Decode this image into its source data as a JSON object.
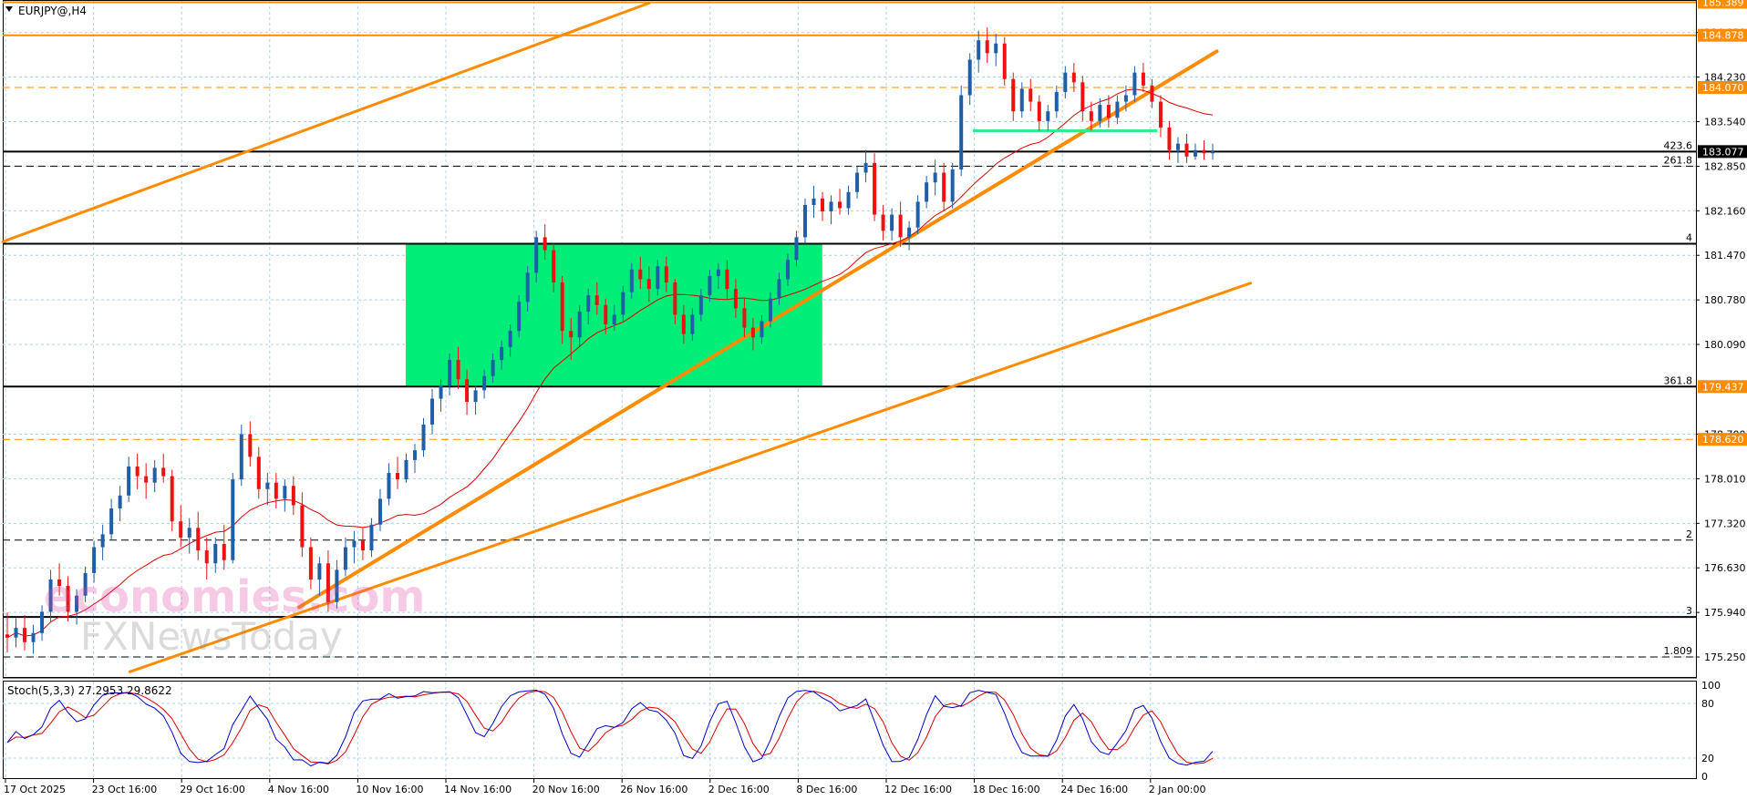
{
  "window": {
    "symbol_label": "EURJPY@,H4",
    "menu_icon": "triangle-down-icon"
  },
  "watermark": {
    "line1": "economies.com",
    "line2": "FXNewsToday"
  },
  "chart_data": {
    "type": "candlestick",
    "symbol": "EURJPY@",
    "timeframe": "H4",
    "price_axis": {
      "range": [
        174.94,
        185.41
      ],
      "ticks": [
        175.25,
        175.94,
        176.63,
        177.32,
        178.01,
        178.7,
        180.09,
        180.78,
        181.47,
        182.16,
        182.85,
        183.54,
        184.23,
        184.92
      ]
    },
    "time_axis": {
      "labels": [
        "17 Oct 2025",
        "23 Oct 16:00",
        "29 Oct 16:00",
        "4 Nov 16:00",
        "10 Nov 16:00",
        "14 Nov 16:00",
        "20 Nov 16:00",
        "26 Nov 16:00",
        "2 Dec 16:00",
        "8 Dec 16:00",
        "12 Dec 16:00",
        "18 Dec 16:00",
        "24 Dec 16:00",
        "2 Jan 00:00"
      ]
    },
    "price_tags": [
      {
        "value": "185.389",
        "bg": "#ff8c00"
      },
      {
        "value": "184.878",
        "bg": "#ff8c00"
      },
      {
        "value": "184.070",
        "bg": "#ff8c00"
      },
      {
        "value": "183.077",
        "bg": "#000000"
      },
      {
        "value": "179.437",
        "bg": "#ff8c00"
      },
      {
        "value": "178.620",
        "bg": "#ff8c00"
      }
    ],
    "horizontal_levels": [
      {
        "price": 185.389,
        "style": "solid",
        "color": "#ff8c00",
        "label": ""
      },
      {
        "price": 184.878,
        "style": "solid",
        "color": "#ff8c00",
        "label": ""
      },
      {
        "price": 184.07,
        "style": "dashed",
        "color": "#ff8c00",
        "label": ""
      },
      {
        "price": 183.077,
        "style": "solid",
        "color": "#000000",
        "label": "423.6"
      },
      {
        "price": 182.85,
        "style": "dashed",
        "color": "#000000",
        "label": "261.8"
      },
      {
        "price": 181.65,
        "style": "solid",
        "color": "#000000",
        "label": "4"
      },
      {
        "price": 179.437,
        "style": "solid",
        "color": "#000000",
        "label": "361.8"
      },
      {
        "price": 178.62,
        "style": "dashed",
        "color": "#ff8c00",
        "label": ""
      },
      {
        "price": 177.06,
        "style": "dashed",
        "color": "#000000",
        "label": "2"
      },
      {
        "price": 175.87,
        "style": "solid",
        "color": "#000000",
        "label": "3"
      },
      {
        "price": 175.25,
        "style": "dashed",
        "color": "#000000",
        "label": "1.809"
      }
    ],
    "trendlines": [
      {
        "x1": 0,
        "y1": 181.68,
        "x2": 0.382,
        "y2": 185.38
      },
      {
        "x1": 0.175,
        "y1": 176.02,
        "x2": 0.717,
        "y2": 184.63
      },
      {
        "x1": 0.075,
        "y1": 175.02,
        "x2": 0.737,
        "y2": 181.04
      }
    ],
    "consolidation_box": {
      "x_start": 0.238,
      "x_end": 0.484,
      "price_low": 179.437,
      "price_high": 181.65,
      "color": "#00ee77"
    },
    "support_segment": {
      "x_start": 0.573,
      "x_end": 0.682,
      "price": 183.4,
      "color": "#33ee88"
    },
    "moving_average_color": "#dd0000",
    "up_color": "#1f5fa8",
    "down_color": "#ee1111",
    "candles": [
      [
        175.6,
        175.94,
        175.32,
        175.55
      ],
      [
        175.55,
        175.85,
        175.4,
        175.7
      ],
      [
        175.7,
        175.9,
        175.35,
        175.48
      ],
      [
        175.48,
        175.75,
        175.3,
        175.62
      ],
      [
        175.62,
        176.05,
        175.5,
        175.95
      ],
      [
        175.95,
        176.6,
        175.8,
        176.45
      ],
      [
        176.45,
        176.7,
        176.2,
        176.35
      ],
      [
        176.35,
        176.5,
        175.8,
        175.95
      ],
      [
        175.95,
        176.3,
        175.75,
        176.2
      ],
      [
        176.2,
        176.65,
        176.1,
        176.55
      ],
      [
        176.55,
        177.05,
        176.4,
        176.95
      ],
      [
        176.95,
        177.3,
        176.75,
        177.15
      ],
      [
        177.15,
        177.7,
        177.05,
        177.55
      ],
      [
        177.55,
        177.9,
        177.35,
        177.75
      ],
      [
        177.75,
        178.35,
        177.65,
        178.2
      ],
      [
        178.2,
        178.4,
        177.85,
        178.05
      ],
      [
        178.05,
        178.25,
        177.7,
        177.95
      ],
      [
        177.95,
        178.3,
        177.8,
        178.18
      ],
      [
        178.18,
        178.4,
        177.95,
        178.05
      ],
      [
        178.05,
        178.15,
        177.2,
        177.35
      ],
      [
        177.35,
        177.6,
        176.95,
        177.1
      ],
      [
        177.1,
        177.4,
        176.85,
        177.25
      ],
      [
        177.25,
        177.5,
        176.75,
        176.9
      ],
      [
        176.9,
        177.1,
        176.45,
        176.7
      ],
      [
        176.7,
        177.1,
        176.55,
        177.0
      ],
      [
        177.0,
        177.3,
        176.6,
        176.75
      ],
      [
        176.75,
        178.1,
        176.7,
        178.0
      ],
      [
        178.0,
        178.85,
        177.9,
        178.7
      ],
      [
        178.7,
        178.9,
        178.2,
        178.35
      ],
      [
        178.35,
        178.5,
        177.7,
        177.85
      ],
      [
        177.85,
        178.1,
        177.6,
        177.95
      ],
      [
        177.95,
        178.1,
        177.55,
        177.7
      ],
      [
        177.7,
        178.0,
        177.5,
        177.9
      ],
      [
        177.9,
        178.05,
        177.45,
        177.6
      ],
      [
        177.6,
        177.8,
        176.8,
        176.95
      ],
      [
        176.95,
        177.1,
        176.3,
        176.45
      ],
      [
        176.45,
        176.8,
        176.2,
        176.7
      ],
      [
        176.7,
        176.9,
        175.95,
        176.1
      ],
      [
        176.1,
        176.75,
        176.0,
        176.6
      ],
      [
        176.6,
        177.1,
        176.5,
        176.95
      ],
      [
        176.95,
        177.2,
        176.7,
        177.05
      ],
      [
        177.05,
        177.25,
        176.75,
        176.9
      ],
      [
        176.9,
        177.4,
        176.8,
        177.3
      ],
      [
        177.3,
        177.85,
        177.2,
        177.7
      ],
      [
        177.7,
        178.25,
        177.6,
        178.1
      ],
      [
        178.1,
        178.35,
        177.85,
        178.0
      ],
      [
        178.0,
        178.4,
        177.95,
        178.3
      ],
      [
        178.3,
        178.55,
        178.1,
        178.45
      ],
      [
        178.45,
        178.95,
        178.35,
        178.85
      ],
      [
        178.85,
        179.4,
        178.7,
        179.25
      ],
      [
        179.25,
        179.55,
        179.05,
        179.45
      ],
      [
        179.45,
        179.95,
        179.3,
        179.85
      ],
      [
        179.85,
        180.05,
        179.4,
        179.55
      ],
      [
        179.55,
        179.7,
        179.0,
        179.2
      ],
      [
        179.2,
        179.45,
        179.0,
        179.38
      ],
      [
        179.38,
        179.7,
        179.25,
        179.6
      ],
      [
        179.6,
        179.95,
        179.5,
        179.85
      ],
      [
        179.85,
        180.15,
        179.7,
        180.05
      ],
      [
        180.05,
        180.4,
        179.9,
        180.3
      ],
      [
        180.3,
        180.85,
        180.2,
        180.75
      ],
      [
        180.75,
        181.3,
        180.6,
        181.2
      ],
      [
        181.2,
        181.85,
        181.05,
        181.75
      ],
      [
        181.75,
        181.95,
        181.4,
        181.55
      ],
      [
        181.55,
        181.65,
        180.9,
        181.05
      ],
      [
        181.05,
        181.15,
        180.1,
        180.3
      ],
      [
        180.3,
        180.5,
        179.85,
        180.2
      ],
      [
        180.2,
        180.7,
        180.05,
        180.6
      ],
      [
        180.6,
        180.95,
        180.4,
        180.85
      ],
      [
        180.85,
        181.05,
        180.55,
        180.7
      ],
      [
        180.7,
        180.8,
        180.25,
        180.4
      ],
      [
        180.4,
        180.7,
        180.3,
        180.55
      ],
      [
        180.55,
        181.0,
        180.45,
        180.9
      ],
      [
        180.9,
        181.35,
        180.8,
        181.25
      ],
      [
        181.25,
        181.45,
        180.95,
        181.1
      ],
      [
        181.1,
        181.3,
        180.75,
        180.95
      ],
      [
        180.95,
        181.4,
        180.85,
        181.3
      ],
      [
        181.3,
        181.45,
        180.9,
        181.05
      ],
      [
        181.05,
        181.1,
        180.4,
        180.55
      ],
      [
        180.55,
        180.7,
        180.1,
        180.25
      ],
      [
        180.25,
        180.65,
        180.15,
        180.55
      ],
      [
        180.55,
        180.95,
        180.45,
        180.85
      ],
      [
        180.85,
        181.25,
        180.75,
        181.15
      ],
      [
        181.15,
        181.35,
        180.95,
        181.25
      ],
      [
        181.25,
        181.4,
        180.8,
        180.95
      ],
      [
        180.95,
        181.1,
        180.5,
        180.65
      ],
      [
        180.65,
        180.8,
        180.2,
        180.35
      ],
      [
        180.35,
        180.5,
        180.0,
        180.2
      ],
      [
        180.2,
        180.55,
        180.1,
        180.45
      ],
      [
        180.45,
        180.9,
        180.35,
        180.8
      ],
      [
        180.8,
        181.2,
        180.7,
        181.1
      ],
      [
        181.1,
        181.5,
        181.0,
        181.4
      ],
      [
        181.4,
        181.85,
        181.3,
        181.75
      ],
      [
        181.75,
        182.35,
        181.65,
        182.25
      ],
      [
        182.25,
        182.55,
        182.05,
        182.35
      ],
      [
        182.35,
        182.45,
        182.0,
        182.15
      ],
      [
        182.15,
        182.4,
        181.95,
        182.3
      ],
      [
        182.3,
        182.5,
        182.1,
        182.2
      ],
      [
        182.2,
        182.55,
        182.1,
        182.45
      ],
      [
        182.45,
        182.85,
        182.35,
        182.75
      ],
      [
        182.75,
        183.1,
        182.6,
        182.9
      ],
      [
        182.9,
        183.05,
        182.0,
        182.1
      ],
      [
        182.1,
        182.25,
        181.7,
        181.85
      ],
      [
        181.85,
        182.2,
        181.7,
        182.1
      ],
      [
        182.1,
        182.3,
        181.6,
        181.75
      ],
      [
        181.75,
        182.0,
        181.55,
        181.9
      ],
      [
        181.9,
        182.4,
        181.8,
        182.3
      ],
      [
        182.3,
        182.7,
        182.2,
        182.6
      ],
      [
        182.6,
        182.95,
        182.4,
        182.75
      ],
      [
        182.75,
        182.9,
        182.15,
        182.3
      ],
      [
        182.3,
        182.9,
        182.2,
        182.8
      ],
      [
        182.8,
        184.1,
        182.7,
        183.95
      ],
      [
        183.95,
        184.6,
        183.8,
        184.5
      ],
      [
        184.5,
        184.95,
        184.3,
        184.8
      ],
      [
        184.8,
        185.0,
        184.45,
        184.6
      ],
      [
        184.6,
        184.9,
        184.4,
        184.75
      ],
      [
        184.75,
        184.85,
        184.1,
        184.2
      ],
      [
        184.2,
        184.3,
        183.55,
        183.7
      ],
      [
        183.7,
        184.15,
        183.6,
        184.05
      ],
      [
        184.05,
        184.2,
        183.7,
        183.85
      ],
      [
        183.85,
        183.95,
        183.4,
        183.55
      ],
      [
        183.55,
        183.8,
        183.4,
        183.7
      ],
      [
        183.7,
        184.1,
        183.6,
        184.0
      ],
      [
        184.0,
        184.4,
        183.9,
        184.3
      ],
      [
        184.3,
        184.45,
        184.0,
        184.15
      ],
      [
        184.15,
        184.25,
        183.55,
        183.7
      ],
      [
        183.7,
        183.85,
        183.4,
        183.55
      ],
      [
        183.55,
        183.9,
        183.45,
        183.8
      ],
      [
        183.8,
        183.95,
        183.45,
        183.6
      ],
      [
        183.6,
        183.95,
        183.5,
        183.85
      ],
      [
        183.85,
        184.1,
        183.7,
        183.95
      ],
      [
        183.95,
        184.4,
        183.85,
        184.3
      ],
      [
        184.3,
        184.45,
        184.0,
        184.1
      ],
      [
        184.1,
        184.2,
        183.75,
        183.85
      ],
      [
        183.85,
        183.95,
        183.3,
        183.45
      ],
      [
        183.45,
        183.55,
        182.95,
        183.1
      ],
      [
        183.1,
        183.3,
        182.9,
        183.2
      ],
      [
        183.2,
        183.35,
        182.9,
        183.0
      ],
      [
        183.0,
        183.2,
        182.95,
        183.1
      ],
      [
        183.1,
        183.25,
        182.95,
        183.05
      ],
      [
        183.05,
        183.2,
        182.95,
        183.08
      ]
    ],
    "stochastic": {
      "label": "Stoch(5,3,3) 27.2953 29.8622",
      "range": [
        0,
        100
      ],
      "ticks": [
        100,
        80,
        20,
        0
      ],
      "main_color": "#0000cc",
      "signal_color": "#dd0000"
    }
  }
}
